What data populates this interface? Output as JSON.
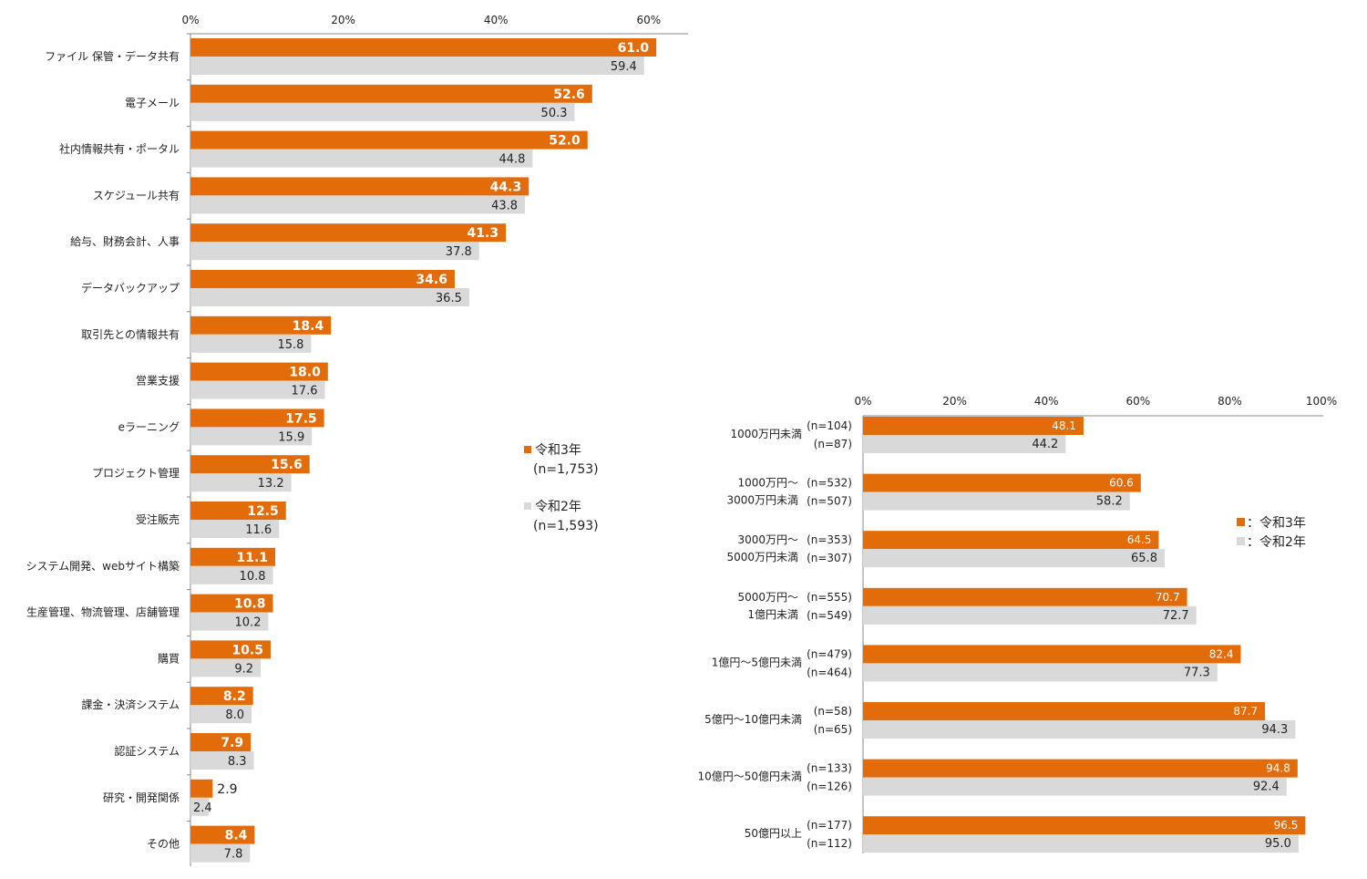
{
  "colors": {
    "orange": "#E36C0A",
    "gray": "#D9D9D9",
    "axis": "#888888"
  },
  "chart_data": [
    {
      "type": "bar",
      "orientation": "horizontal",
      "title": "",
      "xlabel": "",
      "ylabel": "",
      "xlim": [
        0,
        65
      ],
      "ticks": [
        "0%",
        "20%",
        "40%",
        "60%"
      ],
      "tick_values": [
        0,
        20,
        40,
        60
      ],
      "legend": [
        {
          "name": "令和3年",
          "n": "(n=1,753)"
        },
        {
          "name": "令和2年",
          "n": "(n=1,593)"
        }
      ],
      "categories": [
        "ファイル 保管・データ共有",
        "電子メール",
        "社内情報共有・ポータル",
        "スケジュール共有",
        "給与、財務会計、人事",
        "データバックアップ",
        "取引先との情報共有",
        "営業支援",
        "eラーニング",
        "プロジェクト管理",
        "受注販売",
        "システム開発、webサイト構築",
        "生産管理、物流管理、店舗管理",
        "購買",
        "課金・決済システム",
        "認証システム",
        "研究・開発関係",
        "その他"
      ],
      "series": [
        {
          "name": "令和3年",
          "values": [
            "61.0",
            "52.6",
            "52.0",
            "44.3",
            "41.3",
            "34.6",
            "18.4",
            "18.0",
            "17.5",
            "15.6",
            "12.5",
            "11.1",
            "10.8",
            "10.5",
            "8.2",
            "7.9",
            "2.9",
            "8.4"
          ]
        },
        {
          "name": "令和2年",
          "values": [
            "59.4",
            "50.3",
            "44.8",
            "43.8",
            "37.8",
            "36.5",
            "15.8",
            "17.6",
            "15.9",
            "13.2",
            "11.6",
            "10.8",
            "10.2",
            "9.2",
            "8.0",
            "8.3",
            "2.4",
            "7.8"
          ]
        }
      ]
    },
    {
      "type": "bar",
      "orientation": "horizontal",
      "title": "",
      "xlabel": "",
      "ylabel": "",
      "xlim": [
        0,
        100
      ],
      "ticks": [
        "0%",
        "20%",
        "40%",
        "60%",
        "80%",
        "100%"
      ],
      "tick_values": [
        0,
        20,
        40,
        60,
        80,
        100
      ],
      "legend": [
        {
          "name": "：令和3年"
        },
        {
          "name": "：令和2年"
        }
      ],
      "categories": [
        {
          "lines": [
            "1000万円未満"
          ],
          "n": [
            "(n=104)",
            "(n=87)"
          ]
        },
        {
          "lines": [
            "1000万円～",
            "3000万円未満"
          ],
          "n": [
            "(n=532)",
            "(n=507)"
          ]
        },
        {
          "lines": [
            "3000万円～",
            "5000万円未満"
          ],
          "n": [
            "(n=353)",
            "(n=307)"
          ]
        },
        {
          "lines": [
            "5000万円～",
            "1億円未満"
          ],
          "n": [
            "(n=555)",
            "(n=549)"
          ]
        },
        {
          "lines": [
            "1億円～5億円未満"
          ],
          "n": [
            "(n=479)",
            "(n=464)"
          ]
        },
        {
          "lines": [
            "5億円～10億円未満"
          ],
          "n": [
            "(n=58)",
            "(n=65)"
          ]
        },
        {
          "lines": [
            "10億円～50億円未満"
          ],
          "n": [
            "(n=133)",
            "(n=126)"
          ]
        },
        {
          "lines": [
            "50億円以上"
          ],
          "n": [
            "(n=177)",
            "(n=112)"
          ]
        }
      ],
      "series": [
        {
          "name": "令和3年",
          "values": [
            "48.1",
            "60.6",
            "64.5",
            "70.7",
            "82.4",
            "87.7",
            "94.8",
            "96.5"
          ]
        },
        {
          "name": "令和2年",
          "values": [
            "44.2",
            "58.2",
            "65.8",
            "72.7",
            "77.3",
            "94.3",
            "92.4",
            "95.0"
          ]
        }
      ]
    }
  ]
}
